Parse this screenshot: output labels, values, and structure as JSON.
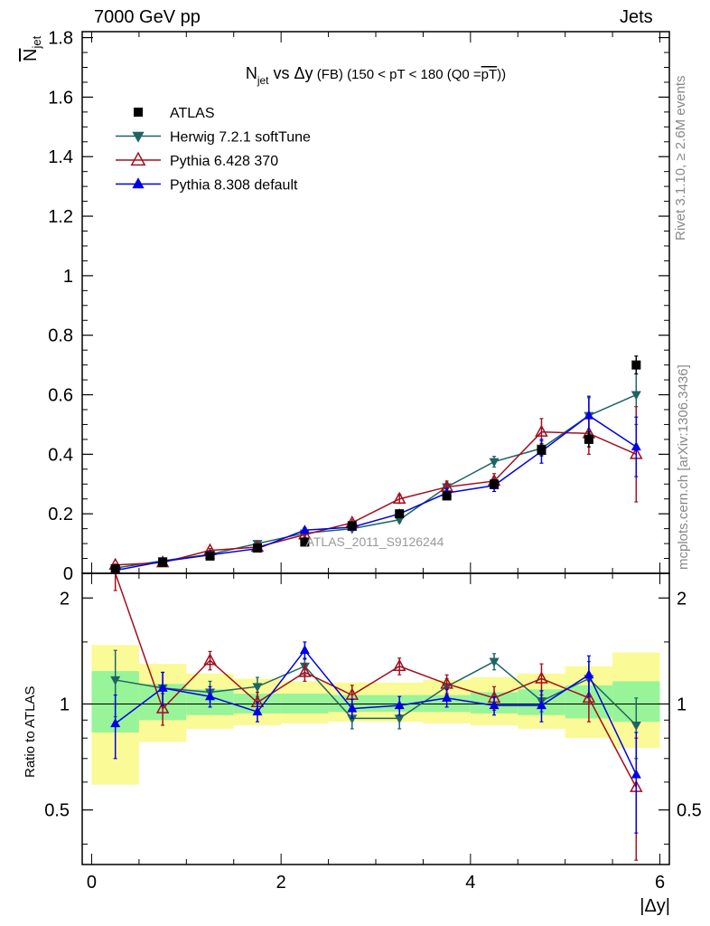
{
  "header": {
    "left": "7000 GeV pp",
    "right": "Jets"
  },
  "side_text": {
    "top": "Rivet 3.1.10, ≥ 2.6M events",
    "bottom": "mcplots.cern.ch [arXiv:1306.3436]"
  },
  "watermark": "ATLAS_2011_S9126244",
  "colors": {
    "atlas": "#000000",
    "herwig": "#1f6464",
    "pythia6": "#a01020",
    "pythia8": "#0000e6",
    "band_inner": "#98f498",
    "band_outer": "#fafa96"
  },
  "chart_data": [
    {
      "type": "line",
      "title_parts": {
        "n": "N",
        "sub": "jet",
        "vs": " vs ",
        "delta": "Δy",
        "fb": " (FB) ",
        "rest": "(150 < pT < 180 (Q0 =",
        "pt": "pT",
        "close": "))"
      },
      "ylabel_parts": {
        "n": "N",
        "sub": "jet"
      },
      "xlim": [
        -0.1,
        6.1
      ],
      "ylim": [
        0,
        1.82
      ],
      "yticks": [
        0,
        0.2,
        0.4,
        0.6,
        0.8,
        1,
        1.2,
        1.4,
        1.6,
        1.8
      ],
      "ytick_labels": [
        "0",
        "0.2",
        "0.4",
        "0.6",
        "0.8",
        "1",
        "1.2",
        "1.4",
        "1.6",
        "1.8"
      ],
      "x": [
        0.25,
        0.75,
        1.25,
        1.75,
        2.25,
        2.75,
        3.25,
        3.75,
        4.25,
        4.75,
        5.25,
        5.75
      ],
      "legend": [
        "ATLAS",
        "Herwig 7.2.1 softTune",
        "Pythia 6.428 370",
        "Pythia 8.308 default"
      ],
      "series": [
        {
          "name": "ATLAS",
          "key": "atlas",
          "marker": "square",
          "values": [
            0.015,
            0.037,
            0.058,
            0.085,
            0.105,
            0.16,
            0.2,
            0.26,
            0.3,
            0.415,
            0.45,
            0.7
          ],
          "errors": [
            0.003,
            0.004,
            0.005,
            0.006,
            0.007,
            0.008,
            0.01,
            0.012,
            0.015,
            0.02,
            0.025,
            0.03
          ]
        },
        {
          "name": "Herwig 7.2.1 softTune",
          "key": "herwig",
          "marker": "triangle-down",
          "values": [
            0.018,
            0.042,
            0.064,
            0.1,
            0.135,
            0.15,
            0.18,
            0.29,
            0.375,
            0.42,
            0.53,
            0.6
          ],
          "errors": [
            0.002,
            0.003,
            0.004,
            0.005,
            0.006,
            0.007,
            0.009,
            0.012,
            0.018,
            0.025,
            0.06,
            0.1
          ]
        },
        {
          "name": "Pythia 6.428 370",
          "key": "pythia6",
          "marker": "triangle-open",
          "values": [
            0.028,
            0.036,
            0.077,
            0.088,
            0.13,
            0.17,
            0.25,
            0.29,
            0.31,
            0.475,
            0.47,
            0.4
          ],
          "errors": [
            0.003,
            0.004,
            0.006,
            0.007,
            0.009,
            0.01,
            0.015,
            0.02,
            0.025,
            0.045,
            0.07,
            0.16
          ]
        },
        {
          "name": "Pythia 8.308 default",
          "key": "pythia8",
          "marker": "triangle-up",
          "values": [
            0.01,
            0.04,
            0.062,
            0.083,
            0.145,
            0.155,
            0.2,
            0.27,
            0.295,
            0.41,
            0.53,
            0.425
          ],
          "errors": [
            0.003,
            0.004,
            0.005,
            0.006,
            0.008,
            0.009,
            0.012,
            0.015,
            0.02,
            0.04,
            0.065,
            0.1
          ]
        }
      ]
    },
    {
      "type": "line",
      "ylabel": "Ratio to ATLAS",
      "xlabel": "|Δy|",
      "xlim": [
        -0.1,
        6.1
      ],
      "ylim": [
        0.35,
        2.35
      ],
      "xticks": [
        0,
        2,
        4,
        6
      ],
      "xtick_labels": [
        "0",
        "2",
        "4",
        "6"
      ],
      "yticks": [
        0.5,
        1,
        2
      ],
      "ytick_labels": [
        "0.5",
        "1",
        "2"
      ],
      "x": [
        0.25,
        0.75,
        1.25,
        1.75,
        2.25,
        2.75,
        3.25,
        3.75,
        4.25,
        4.75,
        5.25,
        5.75
      ],
      "bins": [
        [
          0,
          0.5
        ],
        [
          0.5,
          1
        ],
        [
          1,
          1.5
        ],
        [
          1.5,
          2
        ],
        [
          2,
          2.5
        ],
        [
          2.5,
          3
        ],
        [
          3,
          3.5
        ],
        [
          3.5,
          4
        ],
        [
          4,
          4.5
        ],
        [
          4.5,
          5
        ],
        [
          5,
          5.5
        ],
        [
          5.5,
          6
        ]
      ],
      "band_inner": [
        [
          0.83,
          1.24
        ],
        [
          0.9,
          1.14
        ],
        [
          0.93,
          1.1
        ],
        [
          0.94,
          1.07
        ],
        [
          0.94,
          1.07
        ],
        [
          0.95,
          1.06
        ],
        [
          0.95,
          1.06
        ],
        [
          0.95,
          1.06
        ],
        [
          0.94,
          1.08
        ],
        [
          0.93,
          1.1
        ],
        [
          0.91,
          1.13
        ],
        [
          0.89,
          1.16
        ]
      ],
      "band_outer": [
        [
          0.59,
          1.47
        ],
        [
          0.78,
          1.3
        ],
        [
          0.85,
          1.22
        ],
        [
          0.87,
          1.18
        ],
        [
          0.88,
          1.16
        ],
        [
          0.89,
          1.15
        ],
        [
          0.89,
          1.15
        ],
        [
          0.88,
          1.17
        ],
        [
          0.87,
          1.19
        ],
        [
          0.85,
          1.22
        ],
        [
          0.8,
          1.28
        ],
        [
          0.75,
          1.4
        ]
      ],
      "series": [
        {
          "name": "Herwig 7.2.1 softTune",
          "key": "herwig",
          "marker": "triangle-down",
          "values": [
            1.17,
            1.11,
            1.08,
            1.12,
            1.28,
            0.91,
            0.91,
            1.12,
            1.32,
            1.02,
            1.18,
            0.87
          ],
          "errors": [
            0.25,
            0.12,
            0.08,
            0.07,
            0.07,
            0.06,
            0.06,
            0.06,
            0.07,
            0.07,
            0.14,
            0.17
          ]
        },
        {
          "name": "Pythia 6.428 370",
          "key": "pythia6",
          "marker": "triangle-open",
          "values": [
            2.4,
            0.97,
            1.33,
            1.01,
            1.23,
            1.06,
            1.28,
            1.14,
            1.04,
            1.18,
            1.04,
            0.58
          ],
          "errors": [
            0.3,
            0.1,
            0.08,
            0.07,
            0.07,
            0.07,
            0.07,
            0.07,
            0.08,
            0.12,
            0.15,
            0.22
          ]
        },
        {
          "name": "Pythia 8.308 default",
          "key": "pythia8",
          "marker": "triangle-up",
          "values": [
            0.88,
            1.11,
            1.05,
            0.95,
            1.42,
            0.97,
            0.99,
            1.04,
            0.99,
            0.99,
            1.21,
            0.63
          ],
          "errors": [
            0.18,
            0.12,
            0.07,
            0.06,
            0.08,
            0.06,
            0.06,
            0.06,
            0.06,
            0.1,
            0.16,
            0.2
          ]
        }
      ]
    }
  ]
}
